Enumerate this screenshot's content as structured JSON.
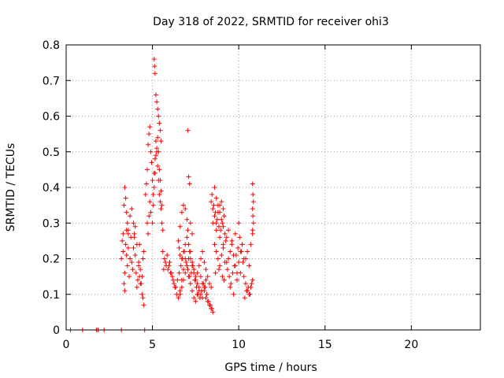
{
  "chart_data": {
    "type": "scatter",
    "title": "Day 318 of 2022, SRMTID for receiver ohi3",
    "xlabel": "GPS time / hours",
    "ylabel": "SRMTID / TECUs",
    "xlim": [
      0,
      24
    ],
    "ylim": [
      0,
      0.8
    ],
    "xticks": [
      0,
      5,
      10,
      15,
      20
    ],
    "xtick_labels": [
      "0",
      "5",
      "10",
      "15",
      "20"
    ],
    "yticks": [
      0,
      0.1,
      0.2,
      0.3,
      0.4,
      0.5,
      0.6,
      0.7,
      0.8
    ],
    "ytick_labels": [
      "0",
      "0.1",
      "0.2",
      "0.3",
      "0.4",
      "0.5",
      "0.6",
      "0.7",
      "0.8"
    ],
    "grid": true,
    "marker": "+",
    "color": "#ff0000",
    "series": [
      {
        "name": "SRMTID",
        "x": [
          0.25,
          0.95,
          1.75,
          1.85,
          2.2,
          3.2,
          4.55,
          3.2,
          3.25,
          3.3,
          3.3,
          3.35,
          3.4,
          3.4,
          3.45,
          3.5,
          3.5,
          3.55,
          3.6,
          3.6,
          3.65,
          3.7,
          3.75,
          3.8,
          3.85,
          3.9,
          3.95,
          4.0,
          4.05,
          4.1,
          4.15,
          4.2,
          4.25,
          4.3,
          4.35,
          4.4,
          4.45,
          4.5,
          3.35,
          3.4,
          3.45,
          3.5,
          3.55,
          3.6,
          3.7,
          3.8,
          3.9,
          3.95,
          4.0,
          4.1,
          4.2,
          4.25,
          4.3,
          4.4,
          4.45,
          4.5,
          4.6,
          4.65,
          4.7,
          4.75,
          4.8,
          4.85,
          4.9,
          4.95,
          5.0,
          5.05,
          5.1,
          5.15,
          5.2,
          5.25,
          5.3,
          5.35,
          5.4,
          5.45,
          5.5,
          5.55,
          5.6,
          4.7,
          4.75,
          4.8,
          4.85,
          4.9,
          5.0,
          5.05,
          5.1,
          5.15,
          5.2,
          5.25,
          5.3,
          5.35,
          5.4,
          5.45,
          5.5,
          5.55,
          5.1,
          5.12,
          5.15,
          5.2,
          5.25,
          5.3,
          5.35,
          5.4,
          5.45,
          5.5,
          5.6,
          5.7,
          5.8,
          5.9,
          6.0,
          6.1,
          6.2,
          6.3,
          6.4,
          6.5,
          6.6,
          6.7,
          6.8,
          6.9,
          7.0,
          7.1,
          7.2,
          7.3,
          7.4,
          7.5,
          7.6,
          7.7,
          7.8,
          7.9,
          8.0,
          8.1,
          8.2,
          8.3,
          8.4,
          8.5,
          5.65,
          5.75,
          5.85,
          5.95,
          6.05,
          6.15,
          6.25,
          6.35,
          6.45,
          6.55,
          6.65,
          6.75,
          6.85,
          6.95,
          7.05,
          7.15,
          7.25,
          7.35,
          7.45,
          7.55,
          7.65,
          7.75,
          7.85,
          7.95,
          8.05,
          8.15,
          8.25,
          8.35,
          8.45,
          6.5,
          6.55,
          6.6,
          6.7,
          6.8,
          6.9,
          7.0,
          7.05,
          7.1,
          7.15,
          7.2,
          7.3,
          7.4,
          7.5,
          7.6,
          7.7,
          7.8,
          7.9,
          8.0,
          8.1,
          8.2,
          8.3,
          8.4,
          6.6,
          6.7,
          6.8,
          6.9,
          7.0,
          7.1,
          7.2,
          7.3,
          7.4,
          7.5,
          7.6,
          7.7,
          7.8,
          7.9,
          8.0,
          8.1,
          7.05,
          7.1,
          7.15,
          6.7,
          6.8,
          6.9,
          7.2,
          7.3,
          7.0,
          6.6,
          8.4,
          8.5,
          8.6,
          8.7,
          8.8,
          8.9,
          9.0,
          9.1,
          9.2,
          9.3,
          8.45,
          8.55,
          8.65,
          8.75,
          8.85,
          8.95,
          9.05,
          9.15,
          9.25,
          8.6,
          8.7,
          8.8,
          8.9,
          9.0,
          9.1,
          8.5,
          8.7,
          8.9,
          9.1,
          8.6,
          8.7,
          8.8,
          8.9,
          9.0,
          9.1,
          9.2,
          8.65,
          8.85,
          9.05,
          9.15,
          9.3,
          9.4,
          9.5,
          9.6,
          9.7,
          9.8,
          9.9,
          10.0,
          10.1,
          10.2,
          10.3,
          9.35,
          9.45,
          9.55,
          9.65,
          9.75,
          9.85,
          9.95,
          10.05,
          10.15,
          10.25,
          9.4,
          9.6,
          9.8,
          10.0,
          10.2,
          9.5,
          9.7,
          9.9,
          10.1,
          10.3,
          10.4,
          10.5,
          10.6,
          10.7,
          10.8,
          10.35,
          10.45,
          10.55,
          10.65,
          10.75,
          10.4,
          10.5,
          10.6,
          10.7,
          10.8,
          10.8,
          10.82,
          10.85,
          10.8,
          10.82,
          10.85,
          10.8
        ],
        "y": [
          0,
          0,
          0,
          0,
          0,
          0,
          0,
          0.2,
          0.25,
          0.27,
          0.22,
          0.13,
          0.11,
          0.16,
          0.24,
          0.28,
          0.21,
          0.18,
          0.27,
          0.23,
          0.15,
          0.2,
          0.26,
          0.19,
          0.17,
          0.23,
          0.27,
          0.21,
          0.16,
          0.12,
          0.14,
          0.19,
          0.24,
          0.17,
          0.13,
          0.15,
          0.2,
          0.22,
          0.35,
          0.4,
          0.37,
          0.33,
          0.3,
          0.28,
          0.32,
          0.34,
          0.3,
          0.26,
          0.29,
          0.24,
          0.18,
          0.15,
          0.13,
          0.1,
          0.09,
          0.07,
          0.38,
          0.41,
          0.45,
          0.52,
          0.55,
          0.57,
          0.5,
          0.47,
          0.42,
          0.38,
          0.44,
          0.48,
          0.53,
          0.5,
          0.46,
          0.42,
          0.38,
          0.36,
          0.34,
          0.3,
          0.28,
          0.3,
          0.27,
          0.32,
          0.36,
          0.33,
          0.3,
          0.35,
          0.4,
          0.44,
          0.49,
          0.51,
          0.54,
          0.5,
          0.45,
          0.42,
          0.39,
          0.35,
          0.76,
          0.74,
          0.72,
          0.66,
          0.64,
          0.62,
          0.6,
          0.58,
          0.56,
          0.53,
          0.22,
          0.2,
          0.18,
          0.17,
          0.19,
          0.16,
          0.14,
          0.12,
          0.1,
          0.09,
          0.11,
          0.14,
          0.17,
          0.2,
          0.18,
          0.15,
          0.13,
          0.11,
          0.09,
          0.08,
          0.1,
          0.12,
          0.15,
          0.13,
          0.11,
          0.09,
          0.08,
          0.07,
          0.06,
          0.05,
          0.17,
          0.19,
          0.21,
          0.18,
          0.16,
          0.15,
          0.13,
          0.12,
          0.14,
          0.16,
          0.18,
          0.2,
          0.22,
          0.19,
          0.17,
          0.15,
          0.16,
          0.18,
          0.14,
          0.12,
          0.1,
          0.09,
          0.11,
          0.13,
          0.12,
          0.1,
          0.08,
          0.07,
          0.06,
          0.25,
          0.23,
          0.21,
          0.2,
          0.22,
          0.24,
          0.26,
          0.28,
          0.24,
          0.22,
          0.2,
          0.18,
          0.16,
          0.14,
          0.16,
          0.18,
          0.2,
          0.22,
          0.19,
          0.17,
          0.15,
          0.13,
          0.12,
          0.1,
          0.12,
          0.14,
          0.16,
          0.18,
          0.2,
          0.22,
          0.19,
          0.17,
          0.15,
          0.13,
          0.11,
          0.1,
          0.09,
          0.12,
          0.14,
          0.56,
          0.43,
          0.41,
          0.33,
          0.35,
          0.34,
          0.3,
          0.27,
          0.31,
          0.29,
          0.36,
          0.34,
          0.32,
          0.3,
          0.33,
          0.35,
          0.31,
          0.29,
          0.27,
          0.26,
          0.38,
          0.35,
          0.33,
          0.31,
          0.29,
          0.28,
          0.3,
          0.32,
          0.25,
          0.4,
          0.37,
          0.35,
          0.33,
          0.36,
          0.34,
          0.3,
          0.28,
          0.26,
          0.24,
          0.24,
          0.22,
          0.2,
          0.18,
          0.21,
          0.23,
          0.19,
          0.16,
          0.17,
          0.15,
          0.14,
          0.19,
          0.2,
          0.22,
          0.24,
          0.21,
          0.18,
          0.16,
          0.19,
          0.22,
          0.24,
          0.2,
          0.17,
          0.15,
          0.13,
          0.16,
          0.18,
          0.21,
          0.23,
          0.26,
          0.22,
          0.19,
          0.28,
          0.25,
          0.27,
          0.3,
          0.24,
          0.12,
          0.1,
          0.14,
          0.16,
          0.15,
          0.13,
          0.11,
          0.1,
          0.12,
          0.14,
          0.09,
          0.11,
          0.12,
          0.1,
          0.13,
          0.2,
          0.22,
          0.18,
          0.24,
          0.27,
          0.41,
          0.38,
          0.36,
          0.34,
          0.32,
          0.3,
          0.28
        ]
      }
    ]
  }
}
